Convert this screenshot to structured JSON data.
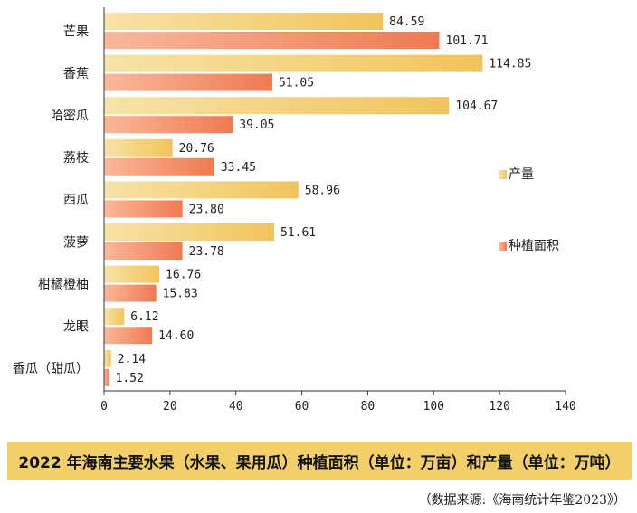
{
  "chart_data": {
    "type": "bar",
    "orientation": "horizontal",
    "categories": [
      "芒果",
      "香蕉",
      "哈密瓜",
      "荔枝",
      "西瓜",
      "菠萝",
      "柑橘橙柚",
      "龙眼",
      "香瓜（甜瓜）"
    ],
    "series": [
      {
        "name": "产量",
        "values": [
          84.59,
          114.85,
          104.67,
          20.76,
          58.96,
          51.61,
          16.76,
          6.12,
          2.14
        ]
      },
      {
        "name": "种植面积",
        "values": [
          101.71,
          51.05,
          39.05,
          33.45,
          23.8,
          23.78,
          15.83,
          14.6,
          1.52
        ]
      }
    ],
    "value_labels": [
      [
        "84.59",
        "101.71"
      ],
      [
        "114.85",
        "51.05"
      ],
      [
        "104.67",
        "39.05"
      ],
      [
        "20.76",
        "33.45"
      ],
      [
        "58.96",
        "23.80"
      ],
      [
        "51.61",
        "23.78"
      ],
      [
        "16.76",
        "15.83"
      ],
      [
        "6.12",
        "14.60"
      ],
      [
        "2.14",
        "1.52"
      ]
    ],
    "xlim": [
      0,
      140
    ],
    "xticks": [
      "0",
      "20",
      "40",
      "60",
      "80",
      "100",
      "120",
      "140"
    ],
    "title": "2022 年海南主要水果（水果、果用瓜）种植面积（单位：万亩）和产量（单位：万吨）",
    "legend_position": "right",
    "grid": false,
    "colors": {
      "production_start": "#f7e3a8",
      "production_end": "#f1c45a",
      "area_start": "#f9b89a",
      "area_end": "#ef7a52",
      "title_band": "#f3cf6a"
    }
  },
  "source": "（数据来源:《海南统计年鉴2023》）"
}
